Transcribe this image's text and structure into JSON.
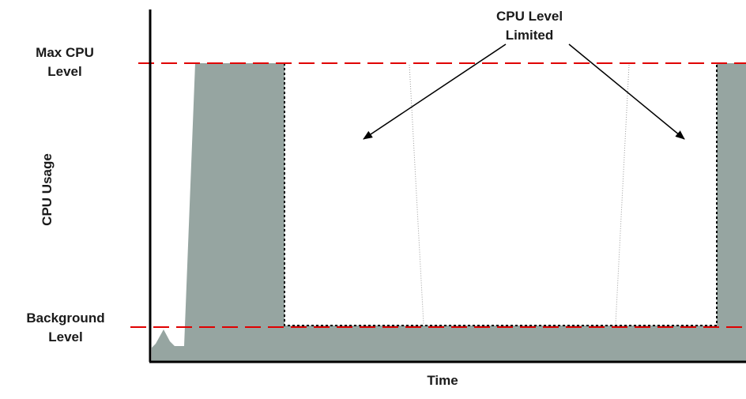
{
  "labels": {
    "max_cpu_level": [
      "Max CPU",
      "Level"
    ],
    "background_level": [
      "Background",
      "Level"
    ],
    "cpu_level_limited": [
      "CPU Level",
      "Limited"
    ],
    "x_axis": "Time",
    "y_axis": "CPU Usage"
  },
  "colors": {
    "usage_fill": "#96a5a1",
    "threshold_line": "#e00000",
    "axis": "#000000",
    "limited_outline": "#000000",
    "guide_line": "#999999"
  }
}
